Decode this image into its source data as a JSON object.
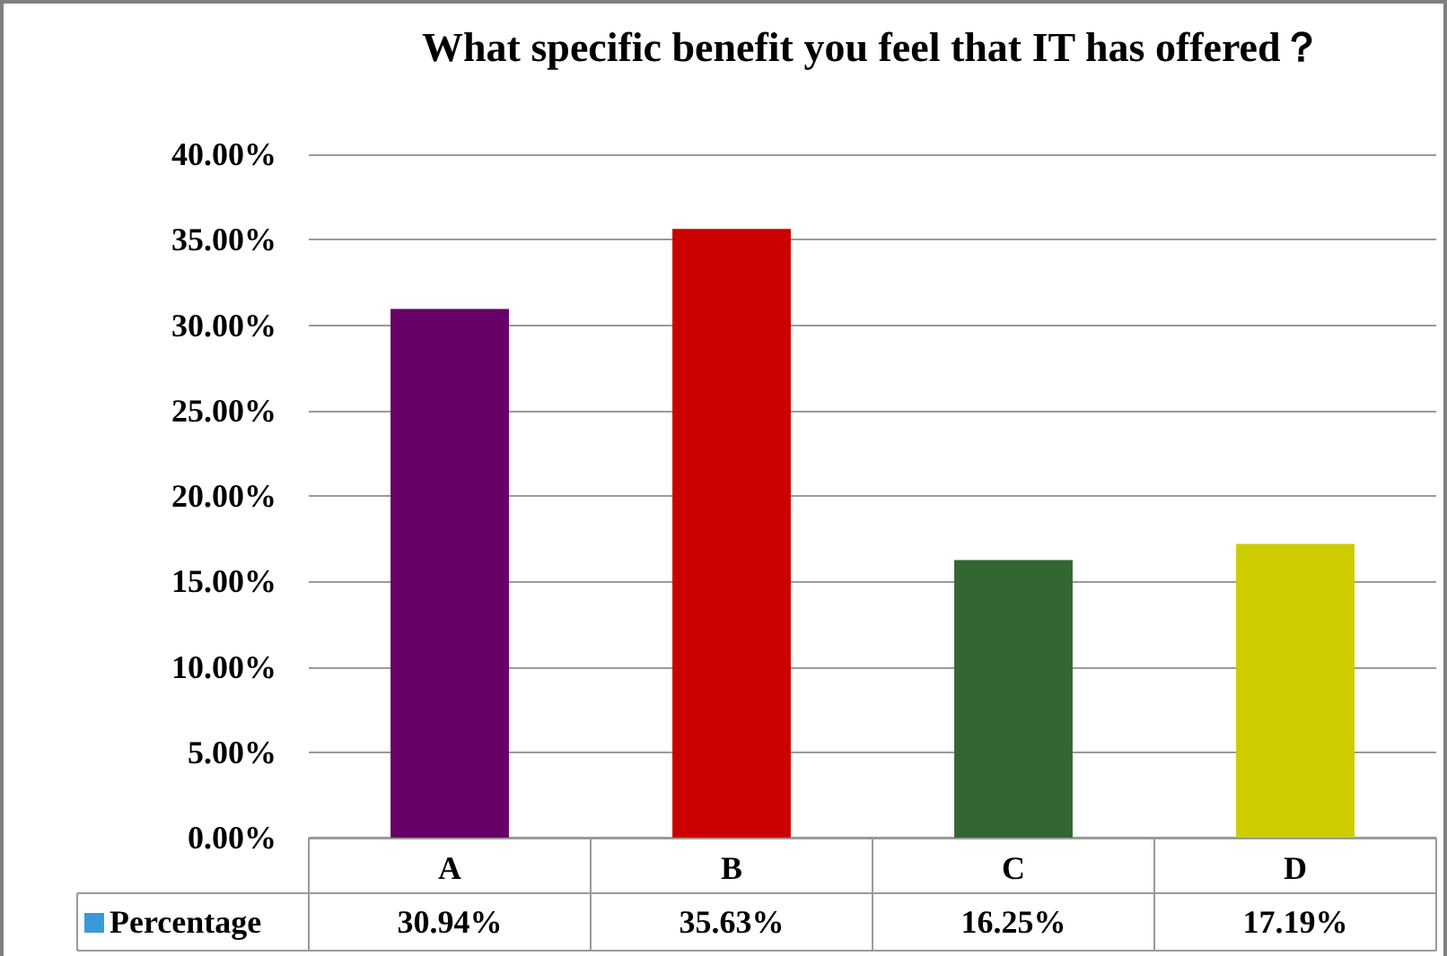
{
  "chart_data": {
    "type": "bar",
    "title": "What specific benefit you feel that IT has offered？",
    "categories": [
      "A",
      "B",
      "C",
      "D"
    ],
    "series": [
      {
        "name": "Percentage",
        "color": "#3a9ad9",
        "colors": [
          "#660066",
          "#cc0000",
          "#336633",
          "#cccc00"
        ],
        "values": [
          30.94,
          35.63,
          16.25,
          17.19
        ],
        "value_labels": [
          "30.94%",
          "35.63%",
          "16.25%",
          "17.19%"
        ]
      }
    ],
    "ylim": [
      0,
      40
    ],
    "yticks": [
      {
        "value": 0,
        "label": "0.00%"
      },
      {
        "value": 5,
        "label": "5.00%"
      },
      {
        "value": 10,
        "label": "10.00%"
      },
      {
        "value": 15,
        "label": "15.00%"
      },
      {
        "value": 20,
        "label": "20.00%"
      },
      {
        "value": 25,
        "label": "25.00%"
      },
      {
        "value": 30,
        "label": "30.00%"
      },
      {
        "value": 35,
        "label": "35.00%"
      },
      {
        "value": 40,
        "label": "40.00%"
      }
    ],
    "grid": "y",
    "legend": "bottom left"
  }
}
